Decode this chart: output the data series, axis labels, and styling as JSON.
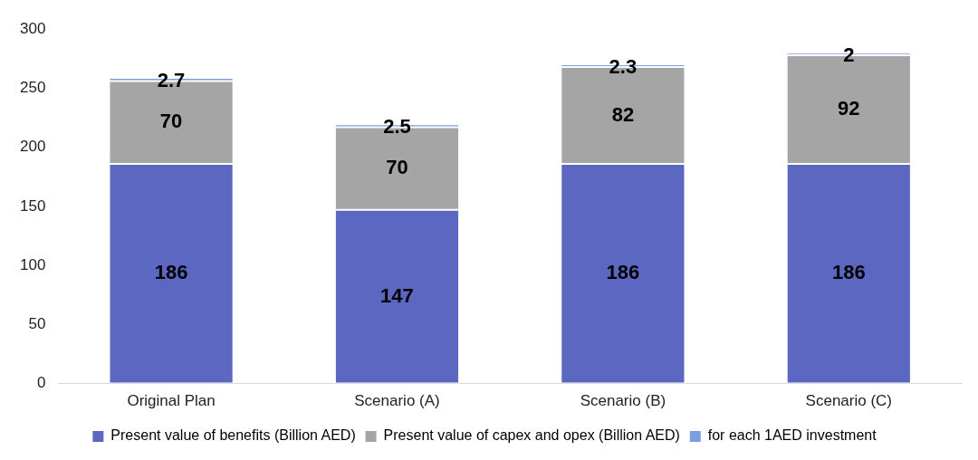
{
  "chart_data": {
    "type": "bar",
    "stacked": true,
    "categories": [
      "Original Plan",
      "Scenario (A)",
      "Scenario (B)",
      "Scenario (C)"
    ],
    "series": [
      {
        "name": "Present value of benefits (Billion AED)",
        "color": "#5b67c1",
        "values": [
          186,
          147,
          186,
          186
        ]
      },
      {
        "name": "Present value of capex and opex (Billion AED)",
        "color": "#a5a5a5",
        "values": [
          70,
          70,
          82,
          92
        ]
      },
      {
        "name": "for each 1AED investment",
        "color": "#7b9ee0",
        "values": [
          2.7,
          2.5,
          2.3,
          2
        ]
      }
    ],
    "ylim": [
      0,
      300
    ],
    "yticks": [
      0,
      50,
      100,
      150,
      200,
      250,
      300
    ],
    "grid": false,
    "legend": "bottom",
    "data_labels": true
  }
}
